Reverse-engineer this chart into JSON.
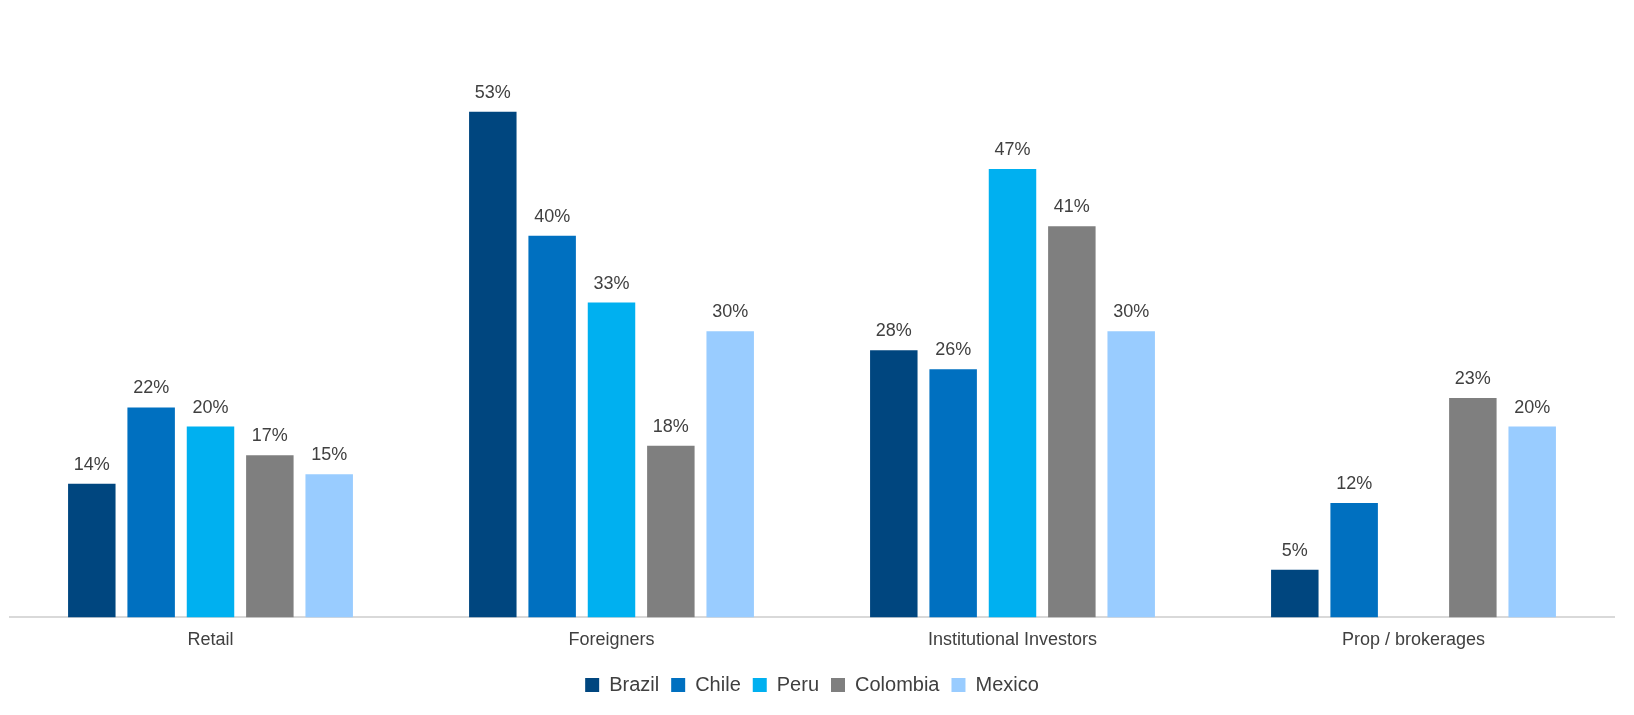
{
  "chart_data": {
    "type": "bar",
    "categories": [
      "Retail",
      "Foreigners",
      "Institutional Investors",
      "Prop / brokerages"
    ],
    "legend": "bottom",
    "grid": false,
    "series": [
      {
        "name": "Brazil",
        "color": "#00467f",
        "values": [
          14,
          53,
          28,
          5
        ],
        "value_labels": [
          "14%",
          "53%",
          "28%",
          "5%"
        ]
      },
      {
        "name": "Chile",
        "color": "#0070c0",
        "values": [
          22,
          40,
          26,
          12
        ],
        "value_labels": [
          "22%",
          "40%",
          "26%",
          "12%"
        ]
      },
      {
        "name": "Peru",
        "color": "#00b0f0",
        "values": [
          20,
          33,
          47,
          null
        ],
        "value_labels": [
          "20%",
          "33%",
          "47%",
          null
        ]
      },
      {
        "name": "Colombia",
        "color": "#7f7f7f",
        "values": [
          17,
          18,
          41,
          23
        ],
        "value_labels": [
          "17%",
          "18%",
          "41%",
          "23%"
        ]
      },
      {
        "name": "Mexico",
        "color": "#99ccff",
        "values": [
          15,
          30,
          30,
          20
        ],
        "value_labels": [
          "15%",
          "30%",
          "30%",
          "20%"
        ]
      }
    ]
  }
}
